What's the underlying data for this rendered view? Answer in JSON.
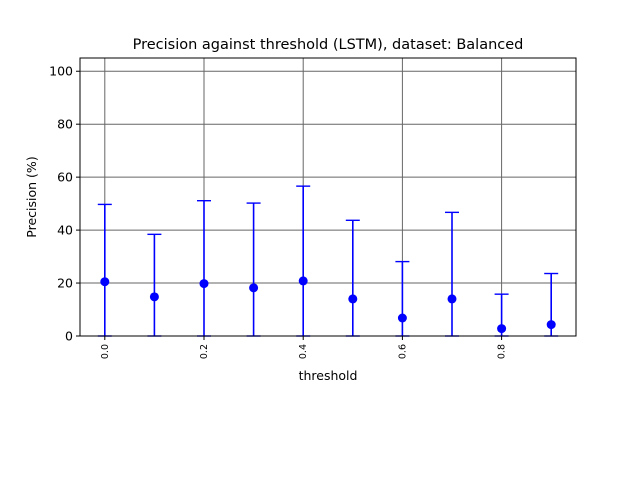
{
  "chart_data": {
    "type": "scatter",
    "title": "Precision against threshold (LSTM), dataset: Balanced",
    "xlabel": "threshold",
    "ylabel": "Precision (%)",
    "xlim": [
      -0.05,
      0.95
    ],
    "ylim": [
      0,
      105
    ],
    "x_ticks": [
      0.0,
      0.2,
      0.4,
      0.6,
      0.8
    ],
    "x_tick_labels": [
      "0.0",
      "0.2",
      "0.4",
      "0.6",
      "0.8"
    ],
    "y_ticks": [
      0,
      20,
      40,
      60,
      80,
      100
    ],
    "y_tick_labels": [
      "0",
      "20",
      "40",
      "60",
      "80",
      "100"
    ],
    "grid": true,
    "color": "#0000ff",
    "series": [
      {
        "x": [
          0.0,
          0.1,
          0.2,
          0.3,
          0.4,
          0.5,
          0.6,
          0.7,
          0.8,
          0.9
        ],
        "values": [
          20.5,
          14.8,
          19.8,
          18.2,
          20.8,
          14.0,
          6.8,
          14.0,
          2.8,
          4.3
        ],
        "error_upper": [
          49.7,
          38.4,
          51.1,
          50.2,
          56.6,
          43.7,
          28.1,
          46.7,
          15.8,
          23.6
        ],
        "error_lower": [
          0,
          0,
          0,
          0,
          0,
          0,
          0,
          0,
          0,
          0
        ]
      }
    ]
  }
}
